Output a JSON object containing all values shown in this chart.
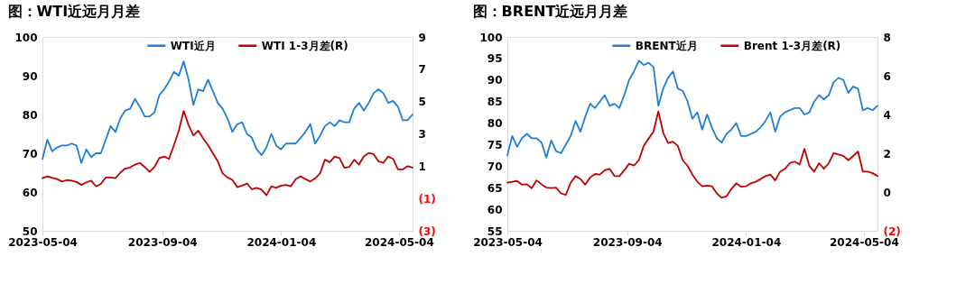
{
  "chart_data": [
    {
      "type": "line",
      "title": "图：WTI近远月月差",
      "legend": "top",
      "x": [
        "2023-05-04",
        "2023-05-09",
        "2023-05-14",
        "2023-05-19",
        "2023-05-24",
        "2023-05-29",
        "2023-06-03",
        "2023-06-08",
        "2023-06-13",
        "2023-06-18",
        "2023-06-23",
        "2023-06-28",
        "2023-07-03",
        "2023-07-08",
        "2023-07-13",
        "2023-07-18",
        "2023-07-23",
        "2023-07-28",
        "2023-08-02",
        "2023-08-07",
        "2023-08-12",
        "2023-08-17",
        "2023-08-22",
        "2023-08-27",
        "2023-09-01",
        "2023-09-06",
        "2023-09-11",
        "2023-09-16",
        "2023-09-21",
        "2023-09-26",
        "2023-10-01",
        "2023-10-06",
        "2023-10-11",
        "2023-10-16",
        "2023-10-21",
        "2023-10-26",
        "2023-10-31",
        "2023-11-05",
        "2023-11-10",
        "2023-11-15",
        "2023-11-20",
        "2023-11-25",
        "2023-11-30",
        "2023-12-05",
        "2023-12-10",
        "2023-12-15",
        "2023-12-20",
        "2023-12-25",
        "2023-12-30",
        "2024-01-04",
        "2024-01-09",
        "2024-01-14",
        "2024-01-19",
        "2024-01-24",
        "2024-01-29",
        "2024-02-03",
        "2024-02-08",
        "2024-02-13",
        "2024-02-18",
        "2024-02-23",
        "2024-02-28",
        "2024-03-04",
        "2024-03-09",
        "2024-03-14",
        "2024-03-19",
        "2024-03-24",
        "2024-03-29",
        "2024-04-03",
        "2024-04-08",
        "2024-04-13",
        "2024-04-18",
        "2024-04-23",
        "2024-04-28",
        "2024-05-03",
        "2024-05-08",
        "2024-05-13",
        "2024-05-18"
      ],
      "xlim": [
        "2023-05-04",
        "2024-05-18"
      ],
      "xticks": [
        "2023-05-04",
        "2023-09-04",
        "2024-01-04",
        "2024-05-04"
      ],
      "ylim": [
        50,
        100
      ],
      "yticks": [
        50,
        60,
        70,
        80,
        90,
        100
      ],
      "y2lim": [
        -3,
        9
      ],
      "y2ticks": [
        {
          "value": -3,
          "label": "(3)"
        },
        {
          "value": -1,
          "label": "(1)"
        },
        1,
        3,
        5,
        7,
        9
      ],
      "series": [
        {
          "name": "WTI近月",
          "color": "#1f7ed6",
          "values": [
            68.5,
            73.5,
            70.5,
            71.5,
            72,
            72,
            72.5,
            72,
            67.5,
            71,
            69,
            70,
            70,
            73.5,
            77,
            75.5,
            79,
            81,
            81.5,
            84,
            82,
            79.5,
            79.5,
            80.5,
            85,
            86.5,
            88.5,
            91,
            90,
            93.7,
            89,
            82.5,
            86.5,
            86,
            89,
            86,
            83,
            81.5,
            79,
            75.5,
            77.5,
            78,
            75,
            74,
            71,
            69.5,
            71.5,
            75,
            72,
            71,
            72.5,
            72.5,
            72.5,
            74,
            75.5,
            77.5,
            72.5,
            74.5,
            77,
            78,
            77,
            78.5,
            78,
            78,
            81.5,
            83,
            81,
            83,
            85.5,
            86.5,
            85.5,
            83,
            83.5,
            82,
            78.5,
            78.5,
            80
          ]
        },
        {
          "name": "WTI 1-3月差(R)",
          "color": "#c00000",
          "axis": "y2",
          "values": [
            0.26,
            0.37,
            0.28,
            0.2,
            0.05,
            0.14,
            0.1,
            0.02,
            -0.16,
            0.0,
            0.1,
            -0.25,
            -0.1,
            0.3,
            0.3,
            0.26,
            0.6,
            0.85,
            0.92,
            1.1,
            1.2,
            0.95,
            0.65,
            0.95,
            1.5,
            1.6,
            1.45,
            2.3,
            3.2,
            4.42,
            3.55,
            2.9,
            3.2,
            2.72,
            2.3,
            1.8,
            1.3,
            0.55,
            0.3,
            0.15,
            -0.3,
            -0.2,
            -0.07,
            -0.43,
            -0.34,
            -0.45,
            -0.8,
            -0.25,
            -0.34,
            -0.2,
            -0.16,
            -0.25,
            0.2,
            0.38,
            0.2,
            0.05,
            0.25,
            0.55,
            1.4,
            1.25,
            1.6,
            1.5,
            0.9,
            0.95,
            1.4,
            1.1,
            1.6,
            1.82,
            1.75,
            1.3,
            1.2,
            1.6,
            1.45,
            0.8,
            0.8,
            1.0,
            0.92
          ]
        }
      ]
    },
    {
      "type": "line",
      "title": "图：BRENT近远月月差",
      "legend": "top",
      "x": [
        "2023-05-04",
        "2023-05-09",
        "2023-05-14",
        "2023-05-19",
        "2023-05-24",
        "2023-05-29",
        "2023-06-03",
        "2023-06-08",
        "2023-06-13",
        "2023-06-18",
        "2023-06-23",
        "2023-06-28",
        "2023-07-03",
        "2023-07-08",
        "2023-07-13",
        "2023-07-18",
        "2023-07-23",
        "2023-07-28",
        "2023-08-02",
        "2023-08-07",
        "2023-08-12",
        "2023-08-17",
        "2023-08-22",
        "2023-08-27",
        "2023-09-01",
        "2023-09-06",
        "2023-09-11",
        "2023-09-16",
        "2023-09-21",
        "2023-09-26",
        "2023-10-01",
        "2023-10-06",
        "2023-10-11",
        "2023-10-16",
        "2023-10-21",
        "2023-10-26",
        "2023-10-31",
        "2023-11-05",
        "2023-11-10",
        "2023-11-15",
        "2023-11-20",
        "2023-11-25",
        "2023-11-30",
        "2023-12-05",
        "2023-12-10",
        "2023-12-15",
        "2023-12-20",
        "2023-12-25",
        "2023-12-30",
        "2024-01-04",
        "2024-01-09",
        "2024-01-14",
        "2024-01-19",
        "2024-01-24",
        "2024-01-29",
        "2024-02-03",
        "2024-02-08",
        "2024-02-13",
        "2024-02-18",
        "2024-02-23",
        "2024-02-28",
        "2024-03-04",
        "2024-03-09",
        "2024-03-14",
        "2024-03-19",
        "2024-03-24",
        "2024-03-29",
        "2024-04-03",
        "2024-04-08",
        "2024-04-13",
        "2024-04-18",
        "2024-04-23",
        "2024-04-28",
        "2024-05-03",
        "2024-05-08",
        "2024-05-13",
        "2024-05-18"
      ],
      "xlim": [
        "2023-05-04",
        "2024-05-18"
      ],
      "xticks": [
        "2023-05-04",
        "2023-09-04",
        "2024-01-04",
        "2024-05-04"
      ],
      "ylim": [
        55,
        100
      ],
      "yticks": [
        55,
        60,
        65,
        70,
        75,
        80,
        85,
        90,
        95,
        100
      ],
      "y2lim": [
        -2,
        8
      ],
      "y2ticks": [
        {
          "value": -2,
          "label": "(2)"
        },
        0,
        2,
        4,
        6,
        8
      ],
      "series": [
        {
          "name": "BRENT近月",
          "color": "#1f7ed6",
          "values": [
            72.5,
            77,
            74.5,
            76.5,
            77.5,
            76.5,
            76.5,
            75.5,
            72,
            76,
            73.5,
            73,
            75,
            77,
            80.5,
            78,
            81.5,
            84.5,
            83.5,
            85,
            86.5,
            84,
            84.5,
            83.5,
            86.5,
            90,
            92,
            94.5,
            93.5,
            94,
            93,
            84,
            88,
            90.5,
            92,
            88,
            87.5,
            85,
            81,
            82.5,
            78.5,
            82,
            79,
            76.5,
            75.5,
            77.5,
            78.5,
            80,
            77,
            77,
            77.5,
            78,
            79,
            80.5,
            82.5,
            78,
            81.5,
            82.5,
            83,
            83.5,
            83.5,
            82,
            82.5,
            85,
            86.5,
            85.5,
            86.5,
            89.5,
            90.5,
            90,
            87,
            88.5,
            88,
            83,
            83.5,
            83,
            84
          ]
        },
        {
          "name": "Brent 1-3月差(R)",
          "color": "#c00000",
          "axis": "y2",
          "values": [
            0.48,
            0.53,
            0.57,
            0.38,
            0.4,
            0.2,
            0.6,
            0.4,
            0.23,
            0.2,
            0.23,
            -0.07,
            -0.15,
            0.48,
            0.82,
            0.67,
            0.38,
            0.75,
            0.93,
            0.9,
            1.12,
            1.2,
            0.82,
            0.82,
            1.12,
            1.46,
            1.37,
            1.64,
            2.38,
            2.75,
            3.12,
            4.16,
            3.05,
            2.53,
            2.6,
            2.38,
            1.64,
            1.35,
            0.9,
            0.53,
            0.3,
            0.33,
            0.3,
            -0.07,
            -0.3,
            -0.22,
            0.16,
            0.45,
            0.27,
            0.3,
            0.45,
            0.53,
            0.67,
            0.82,
            0.9,
            0.6,
            1.05,
            1.2,
            1.49,
            1.57,
            1.42,
            2.23,
            1.34,
            1.05,
            1.49,
            1.2,
            1.49,
            2.01,
            1.94,
            1.86,
            1.64,
            1.86,
            2.09,
            1.05,
            1.05,
            0.97,
            0.82
          ]
        }
      ]
    }
  ]
}
